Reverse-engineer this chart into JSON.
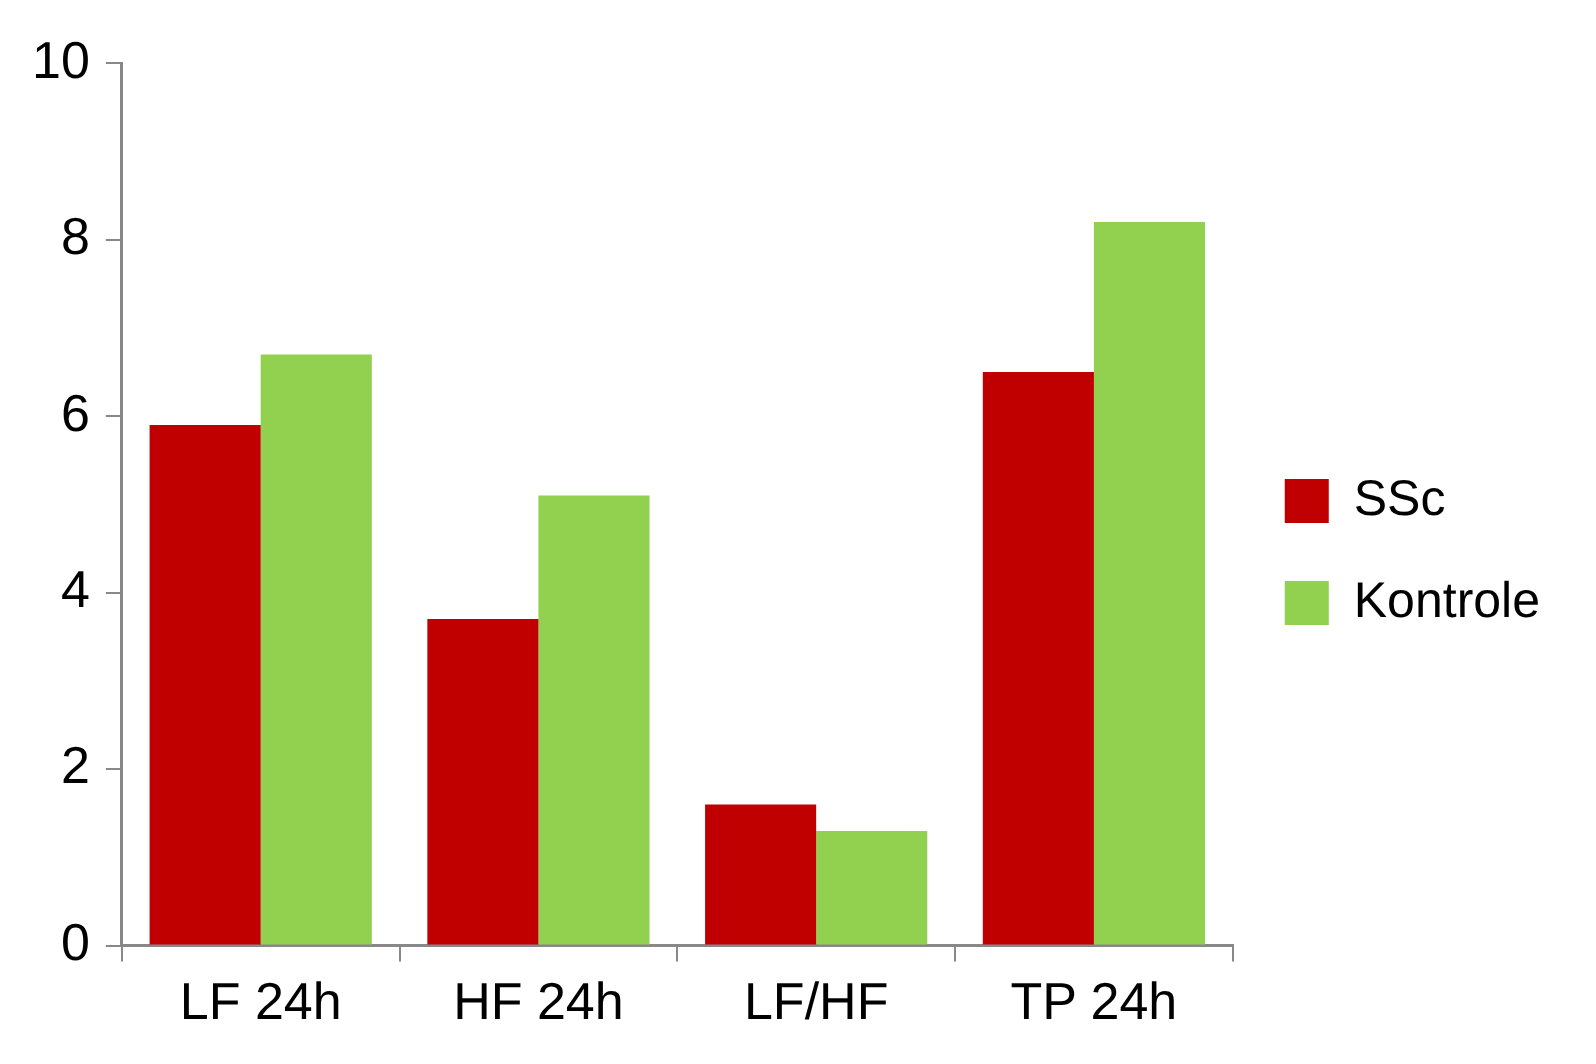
{
  "chart_data": {
    "type": "bar",
    "categories": [
      "LF 24h",
      "HF 24h",
      "LF/HF",
      "TP 24h"
    ],
    "series": [
      {
        "name": "SSc",
        "color": "#c00000",
        "values": [
          5.9,
          3.7,
          1.6,
          6.5
        ]
      },
      {
        "name": "Kontrole",
        "color": "#92d050",
        "values": [
          6.7,
          5.1,
          1.3,
          8.2
        ]
      }
    ],
    "ylim": [
      0,
      10
    ],
    "yticks": [
      0,
      2,
      4,
      6,
      8,
      10
    ],
    "grid": false,
    "legend": "right"
  }
}
